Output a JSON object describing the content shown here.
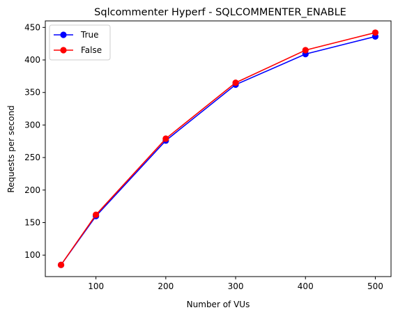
{
  "chart_data": {
    "type": "line",
    "title": "Sqlcommenter Hyperf - SQLCOMMENTER_ENABLE",
    "xlabel": "Number of VUs",
    "ylabel": "Requests per second",
    "x": [
      50,
      100,
      200,
      300,
      400,
      500
    ],
    "x_ticks": [
      100,
      200,
      300,
      400,
      500
    ],
    "y_ticks": [
      100,
      150,
      200,
      250,
      300,
      350,
      400,
      450
    ],
    "xlim": [
      27.5,
      522.5
    ],
    "ylim": [
      67,
      460
    ],
    "grid": false,
    "legend_position": "top-left",
    "series": [
      {
        "name": "True",
        "color": "#0000ff",
        "values": [
          85,
          160,
          276,
          362,
          409,
          436
        ]
      },
      {
        "name": "False",
        "color": "#ff0000",
        "values": [
          85,
          162,
          279,
          365,
          415,
          442
        ]
      }
    ]
  }
}
